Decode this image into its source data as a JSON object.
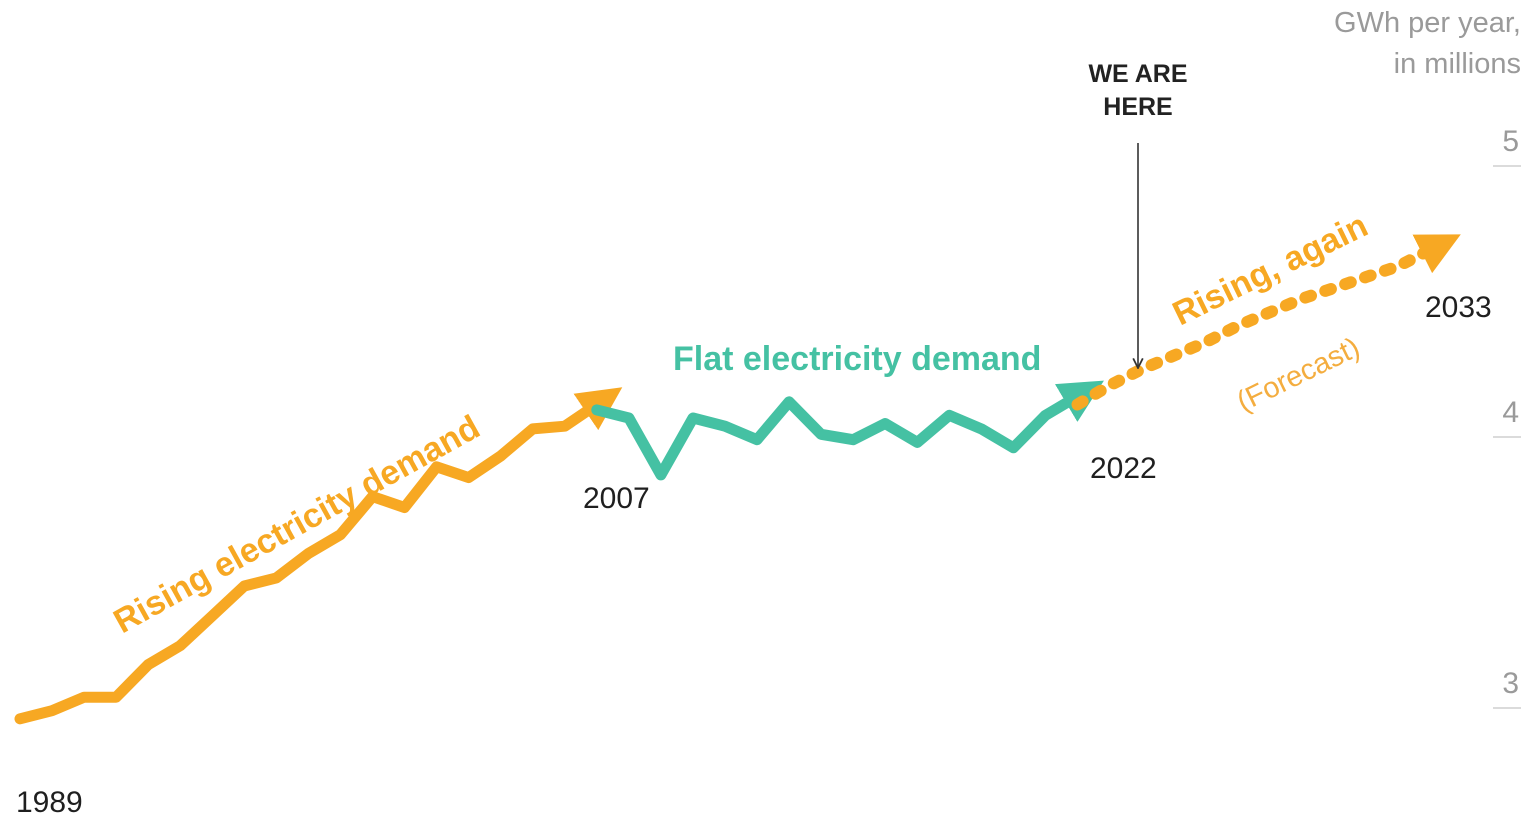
{
  "chart_data": {
    "type": "line",
    "ylabel": [
      "GWh per year,",
      "in millions"
    ],
    "ylim": [
      2.85,
      5.1
    ],
    "yticks": [
      3,
      4,
      5
    ],
    "xlim": [
      1989,
      2033
    ],
    "grid": false,
    "colors": {
      "rising": "#f7a823",
      "flat": "#45c1a3",
      "forecast": "#f7a823",
      "forecast_text": "#f4ad3f",
      "marker": "#333333"
    },
    "series": [
      {
        "segment": "rising",
        "x": [
          1989,
          1990,
          1991,
          1992,
          1993,
          1994,
          1995,
          1996,
          1997,
          1998,
          1999,
          2000,
          2001,
          2002,
          2003,
          2004,
          2005,
          2006,
          2007
        ],
        "y": [
          2.96,
          2.99,
          3.04,
          3.04,
          3.16,
          3.23,
          3.34,
          3.45,
          3.48,
          3.57,
          3.64,
          3.78,
          3.74,
          3.89,
          3.85,
          3.93,
          4.03,
          4.04,
          4.12
        ]
      },
      {
        "segment": "flat",
        "x": [
          2007,
          2008,
          2009,
          2010,
          2011,
          2012,
          2013,
          2014,
          2015,
          2016,
          2017,
          2018,
          2019,
          2020,
          2021,
          2022
        ],
        "y": [
          4.1,
          4.07,
          3.86,
          4.07,
          4.04,
          3.99,
          4.13,
          4.01,
          3.99,
          4.05,
          3.98,
          4.08,
          4.03,
          3.96,
          4.08,
          4.15
        ]
      },
      {
        "segment": "forecast",
        "x": [
          2022,
          2023,
          2024,
          2025,
          2026,
          2027,
          2028,
          2029,
          2030,
          2031,
          2032,
          2033
        ],
        "y": [
          4.12,
          4.19,
          4.25,
          4.3,
          4.35,
          4.41,
          4.46,
          4.51,
          4.55,
          4.59,
          4.63,
          4.69
        ]
      }
    ],
    "annotations": {
      "rising": "Rising electricity demand",
      "flat": "Flat electricity demand",
      "forecast": "Rising, again",
      "forecast_note": "(Forecast)",
      "marker": [
        "WE ARE",
        "HERE"
      ],
      "year_labels": [
        "1989",
        "2007",
        "2022",
        "2033"
      ]
    }
  }
}
